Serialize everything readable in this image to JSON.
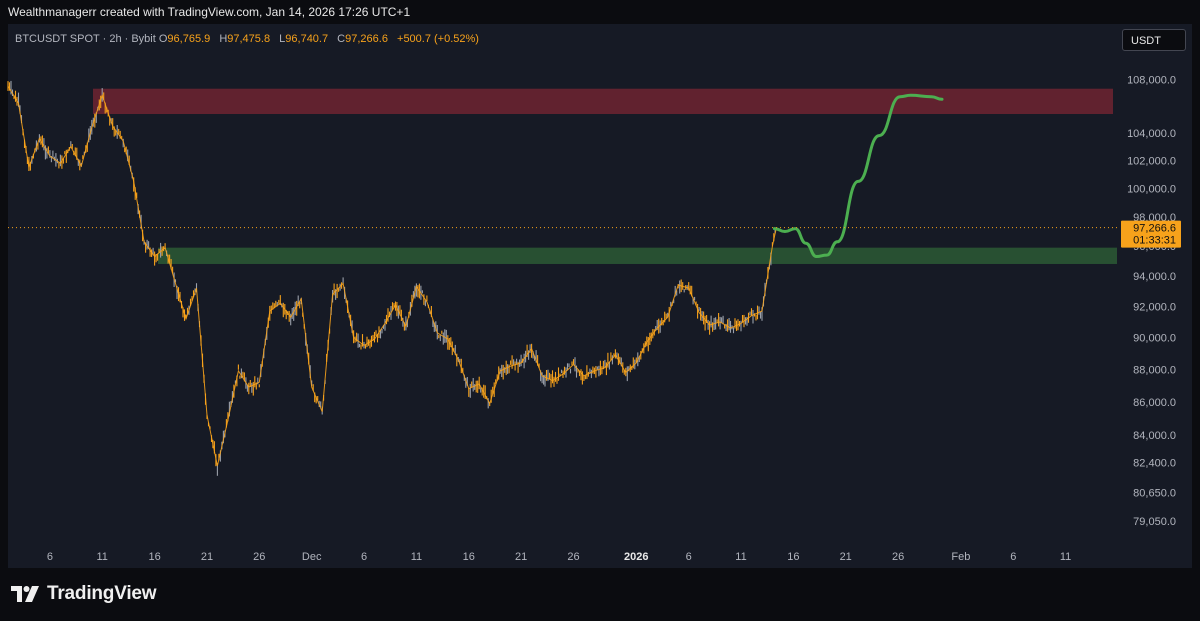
{
  "header": {
    "credit": "Wealthmanagerr created with TradingView.com, Jan 14, 2026 17:26 UTC+1"
  },
  "legend": {
    "symbol": "BTCUSDT SPOT · 2h · Bybit",
    "open_label": "O",
    "open": "96,765.9",
    "high_label": "H",
    "high": "97,475.8",
    "low_label": "L",
    "low": "96,740.7",
    "close_label": "C",
    "close": "97,266.6",
    "change": "+500.7 (+0.52%)"
  },
  "currency_button": "USDT",
  "price_badge": {
    "price": "97,266.6",
    "countdown": "01:33:31"
  },
  "footer": {
    "brand": "TradingView"
  },
  "colors": {
    "candle": "#f7a21b",
    "resistance_zone": "#6e2431",
    "support_zone": "#2b5a35",
    "projection": "#4caf50",
    "badge": "#f7a21b"
  },
  "chart_data": {
    "type": "line",
    "scale": "log",
    "ylim": [
      78000,
      109500
    ],
    "y_ticks": [
      {
        "value": 108000,
        "label": "108,000.0"
      },
      {
        "value": 104000,
        "label": "104,000.0"
      },
      {
        "value": 102000,
        "label": "102,000.0"
      },
      {
        "value": 100000,
        "label": "100,000.0"
      },
      {
        "value": 98000,
        "label": "98,000.0"
      },
      {
        "value": 96000,
        "label": "96,000.0"
      },
      {
        "value": 94000,
        "label": "94,000.0"
      },
      {
        "value": 92000,
        "label": "92,000.0"
      },
      {
        "value": 90000,
        "label": "90,000.0"
      },
      {
        "value": 88000,
        "label": "88,000.0"
      },
      {
        "value": 86000,
        "label": "86,000.0"
      },
      {
        "value": 84000,
        "label": "84,000.0"
      },
      {
        "value": 82400,
        "label": "82,400.0"
      },
      {
        "value": 80650,
        "label": "80,650.0"
      },
      {
        "value": 79050,
        "label": "79,050.0"
      }
    ],
    "x_ticks": [
      {
        "date": "2025-11-06",
        "label": "6"
      },
      {
        "date": "2025-11-11",
        "label": "11"
      },
      {
        "date": "2025-11-16",
        "label": "16"
      },
      {
        "date": "2025-11-21",
        "label": "21"
      },
      {
        "date": "2025-11-26",
        "label": "26"
      },
      {
        "date": "2025-12-01",
        "label": "Dec"
      },
      {
        "date": "2025-12-06",
        "label": "6"
      },
      {
        "date": "2025-12-11",
        "label": "11"
      },
      {
        "date": "2025-12-16",
        "label": "16"
      },
      {
        "date": "2025-12-21",
        "label": "21"
      },
      {
        "date": "2025-12-26",
        "label": "26"
      },
      {
        "date": "2026-01-01",
        "label": "2026"
      },
      {
        "date": "2026-01-06",
        "label": "6"
      },
      {
        "date": "2026-01-11",
        "label": "11"
      },
      {
        "date": "2026-01-16",
        "label": "16"
      },
      {
        "date": "2026-01-21",
        "label": "21"
      },
      {
        "date": "2026-01-26",
        "label": "26"
      },
      {
        "date": "2026-02-01",
        "label": "Feb"
      },
      {
        "date": "2026-02-06",
        "label": "6"
      },
      {
        "date": "2026-02-11",
        "label": "11"
      }
    ],
    "xlim": [
      "2025-11-02",
      "2026-02-16"
    ],
    "price_path": [
      {
        "date": "2025-11-02",
        "y": 107500
      },
      {
        "date": "2025-11-03",
        "y": 106200
      },
      {
        "date": "2025-11-04",
        "y": 101500
      },
      {
        "date": "2025-11-05",
        "y": 103600
      },
      {
        "date": "2025-11-06",
        "y": 102300
      },
      {
        "date": "2025-11-07",
        "y": 101800
      },
      {
        "date": "2025-11-08",
        "y": 103000
      },
      {
        "date": "2025-11-09",
        "y": 101600
      },
      {
        "date": "2025-11-10",
        "y": 104400
      },
      {
        "date": "2025-11-11",
        "y": 106800
      },
      {
        "date": "2025-11-12",
        "y": 104500
      },
      {
        "date": "2025-11-13",
        "y": 103400
      },
      {
        "date": "2025-11-14",
        "y": 100500
      },
      {
        "date": "2025-11-15",
        "y": 96300
      },
      {
        "date": "2025-11-16",
        "y": 95300
      },
      {
        "date": "2025-11-17",
        "y": 95900
      },
      {
        "date": "2025-11-18",
        "y": 93500
      },
      {
        "date": "2025-11-19",
        "y": 91200
      },
      {
        "date": "2025-11-20",
        "y": 93200
      },
      {
        "date": "2025-11-21",
        "y": 85200
      },
      {
        "date": "2025-11-22",
        "y": 82200
      },
      {
        "date": "2025-11-23",
        "y": 84900
      },
      {
        "date": "2025-11-24",
        "y": 87900
      },
      {
        "date": "2025-11-25",
        "y": 86900
      },
      {
        "date": "2025-11-26",
        "y": 87200
      },
      {
        "date": "2025-11-27",
        "y": 91700
      },
      {
        "date": "2025-11-28",
        "y": 92200
      },
      {
        "date": "2025-11-29",
        "y": 91300
      },
      {
        "date": "2025-11-30",
        "y": 92500
      },
      {
        "date": "2025-12-01",
        "y": 86900
      },
      {
        "date": "2025-12-02",
        "y": 85400
      },
      {
        "date": "2025-12-03",
        "y": 92800
      },
      {
        "date": "2025-12-04",
        "y": 93500
      },
      {
        "date": "2025-12-05",
        "y": 90000
      },
      {
        "date": "2025-12-06",
        "y": 89500
      },
      {
        "date": "2025-12-07",
        "y": 89900
      },
      {
        "date": "2025-12-08",
        "y": 90900
      },
      {
        "date": "2025-12-09",
        "y": 92100
      },
      {
        "date": "2025-12-10",
        "y": 90700
      },
      {
        "date": "2025-12-11",
        "y": 93300
      },
      {
        "date": "2025-12-12",
        "y": 92300
      },
      {
        "date": "2025-12-13",
        "y": 90300
      },
      {
        "date": "2025-12-14",
        "y": 89900
      },
      {
        "date": "2025-12-15",
        "y": 88600
      },
      {
        "date": "2025-12-16",
        "y": 86800
      },
      {
        "date": "2025-12-17",
        "y": 87100
      },
      {
        "date": "2025-12-18",
        "y": 85900
      },
      {
        "date": "2025-12-19",
        "y": 87900
      },
      {
        "date": "2025-12-20",
        "y": 88200
      },
      {
        "date": "2025-12-21",
        "y": 88400
      },
      {
        "date": "2025-12-22",
        "y": 89300
      },
      {
        "date": "2025-12-23",
        "y": 87600
      },
      {
        "date": "2025-12-24",
        "y": 87300
      },
      {
        "date": "2025-12-25",
        "y": 87700
      },
      {
        "date": "2025-12-26",
        "y": 88300
      },
      {
        "date": "2025-12-27",
        "y": 87600
      },
      {
        "date": "2025-12-28",
        "y": 87900
      },
      {
        "date": "2025-12-29",
        "y": 88100
      },
      {
        "date": "2025-12-30",
        "y": 88900
      },
      {
        "date": "2025-12-31",
        "y": 87800
      },
      {
        "date": "2026-01-01",
        "y": 88400
      },
      {
        "date": "2026-01-02",
        "y": 89700
      },
      {
        "date": "2026-01-03",
        "y": 90600
      },
      {
        "date": "2026-01-04",
        "y": 91300
      },
      {
        "date": "2026-01-05",
        "y": 93400
      },
      {
        "date": "2026-01-06",
        "y": 93200
      },
      {
        "date": "2026-01-07",
        "y": 91600
      },
      {
        "date": "2026-01-08",
        "y": 90800
      },
      {
        "date": "2026-01-09",
        "y": 91000
      },
      {
        "date": "2026-01-10",
        "y": 90600
      },
      {
        "date": "2026-01-11",
        "y": 90900
      },
      {
        "date": "2026-01-12",
        "y": 91400
      },
      {
        "date": "2026-01-13",
        "y": 91700
      },
      {
        "date": "2026-01-14",
        "y": 96000
      },
      {
        "date": "2026-01-14",
        "y": 97266.6
      }
    ],
    "projection_path": [
      {
        "date": "2026-01-14",
        "y": 97200
      },
      {
        "date": "2026-01-15",
        "y": 97000
      },
      {
        "date": "2026-01-16",
        "y": 97200
      },
      {
        "date": "2026-01-17",
        "y": 96200
      },
      {
        "date": "2026-01-18",
        "y": 95300
      },
      {
        "date": "2026-01-19",
        "y": 95400
      },
      {
        "date": "2026-01-20",
        "y": 96300
      },
      {
        "date": "2026-01-22",
        "y": 100500
      },
      {
        "date": "2026-01-24",
        "y": 103800
      },
      {
        "date": "2026-01-26",
        "y": 106700
      },
      {
        "date": "2026-01-27",
        "y": 106800
      },
      {
        "date": "2026-01-29",
        "y": 106700
      },
      {
        "date": "2026-01-30",
        "y": 106500
      }
    ],
    "zones": [
      {
        "name": "resistance",
        "from": 105400,
        "to": 107300
      },
      {
        "name": "support",
        "from": 94800,
        "to": 95900
      }
    ],
    "current_price": 97266.6,
    "grid": false,
    "legend": "top-left"
  }
}
